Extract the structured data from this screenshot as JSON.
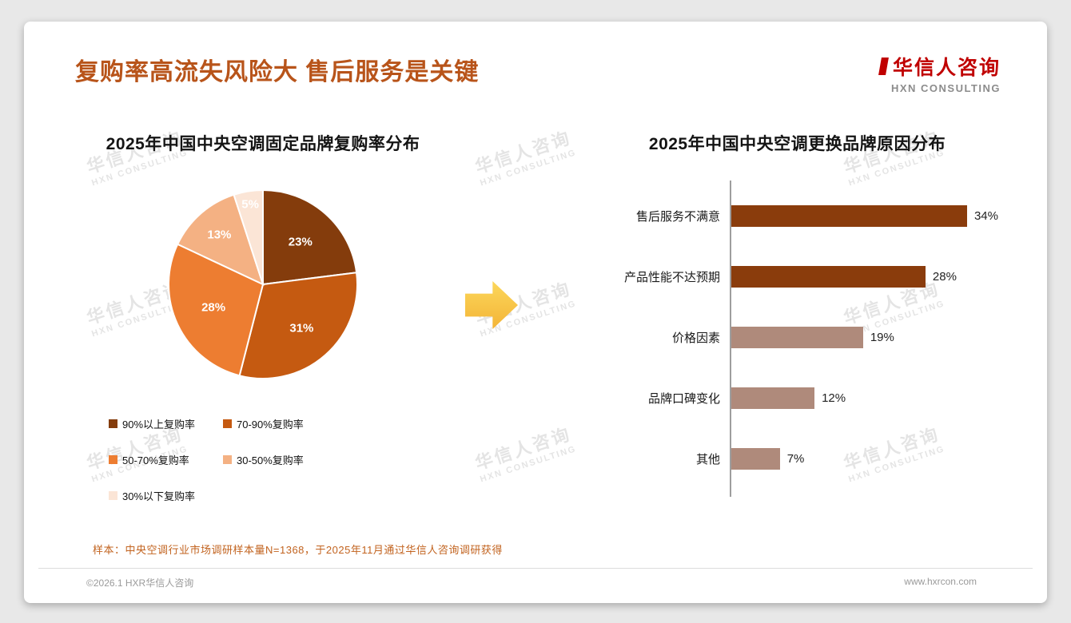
{
  "page": {
    "title": "复购率高流失风险大 售后服务是关键",
    "logo": {
      "cn": "华信人咨询",
      "en": "HXN CONSULTING"
    },
    "watermark": {
      "cn": "华信人咨询",
      "en": "HXN CONSULTING"
    },
    "footnote": "样本：中央空调行业市场调研样本量N=1368，于2025年11月通过华信人咨询调研获得",
    "footer": {
      "left": "©2026.1 HXR华信人咨询",
      "right": "www.hxrcon.com"
    },
    "colors": {
      "accent": "#B8541A",
      "logo_red": "#C00000",
      "arrow_gold": "#F5C242"
    }
  },
  "chart_data": [
    {
      "type": "pie",
      "title": "2025年中国中央空调固定品牌复购率分布",
      "labels": [
        "90%以上复购率",
        "70-90%复购率",
        "50-70%复购率",
        "30-50%复购率",
        "30%以下复购率"
      ],
      "values": [
        23,
        31,
        28,
        13,
        5
      ],
      "data_labels": [
        "23%",
        "31%",
        "28%",
        "13%",
        "5%"
      ],
      "colors": [
        "#843C0C",
        "#C55A11",
        "#ED7D31",
        "#F4B183",
        "#FBE5D6"
      ],
      "label_radius": [
        0.6,
        0.62,
        0.58,
        0.7,
        0.86
      ],
      "start_angle_deg": -90,
      "direction": "clockwise",
      "legend_position": "bottom"
    },
    {
      "type": "bar",
      "orientation": "horizontal",
      "title": "2025年中国中央空调更换品牌原因分布",
      "categories": [
        "售后服务不满意",
        "产品性能不达预期",
        "价格因素",
        "品牌口碑变化",
        "其他"
      ],
      "values": [
        34,
        28,
        19,
        12,
        7
      ],
      "value_labels": [
        "34%",
        "28%",
        "19%",
        "12%",
        "7%"
      ],
      "colors": [
        "#8A3C0C",
        "#8A3C0C",
        "#AF8A7B",
        "#AF8A7B",
        "#AF8A7B"
      ],
      "xlim": [
        0,
        40
      ],
      "grid": false,
      "legend_position": "none"
    }
  ]
}
